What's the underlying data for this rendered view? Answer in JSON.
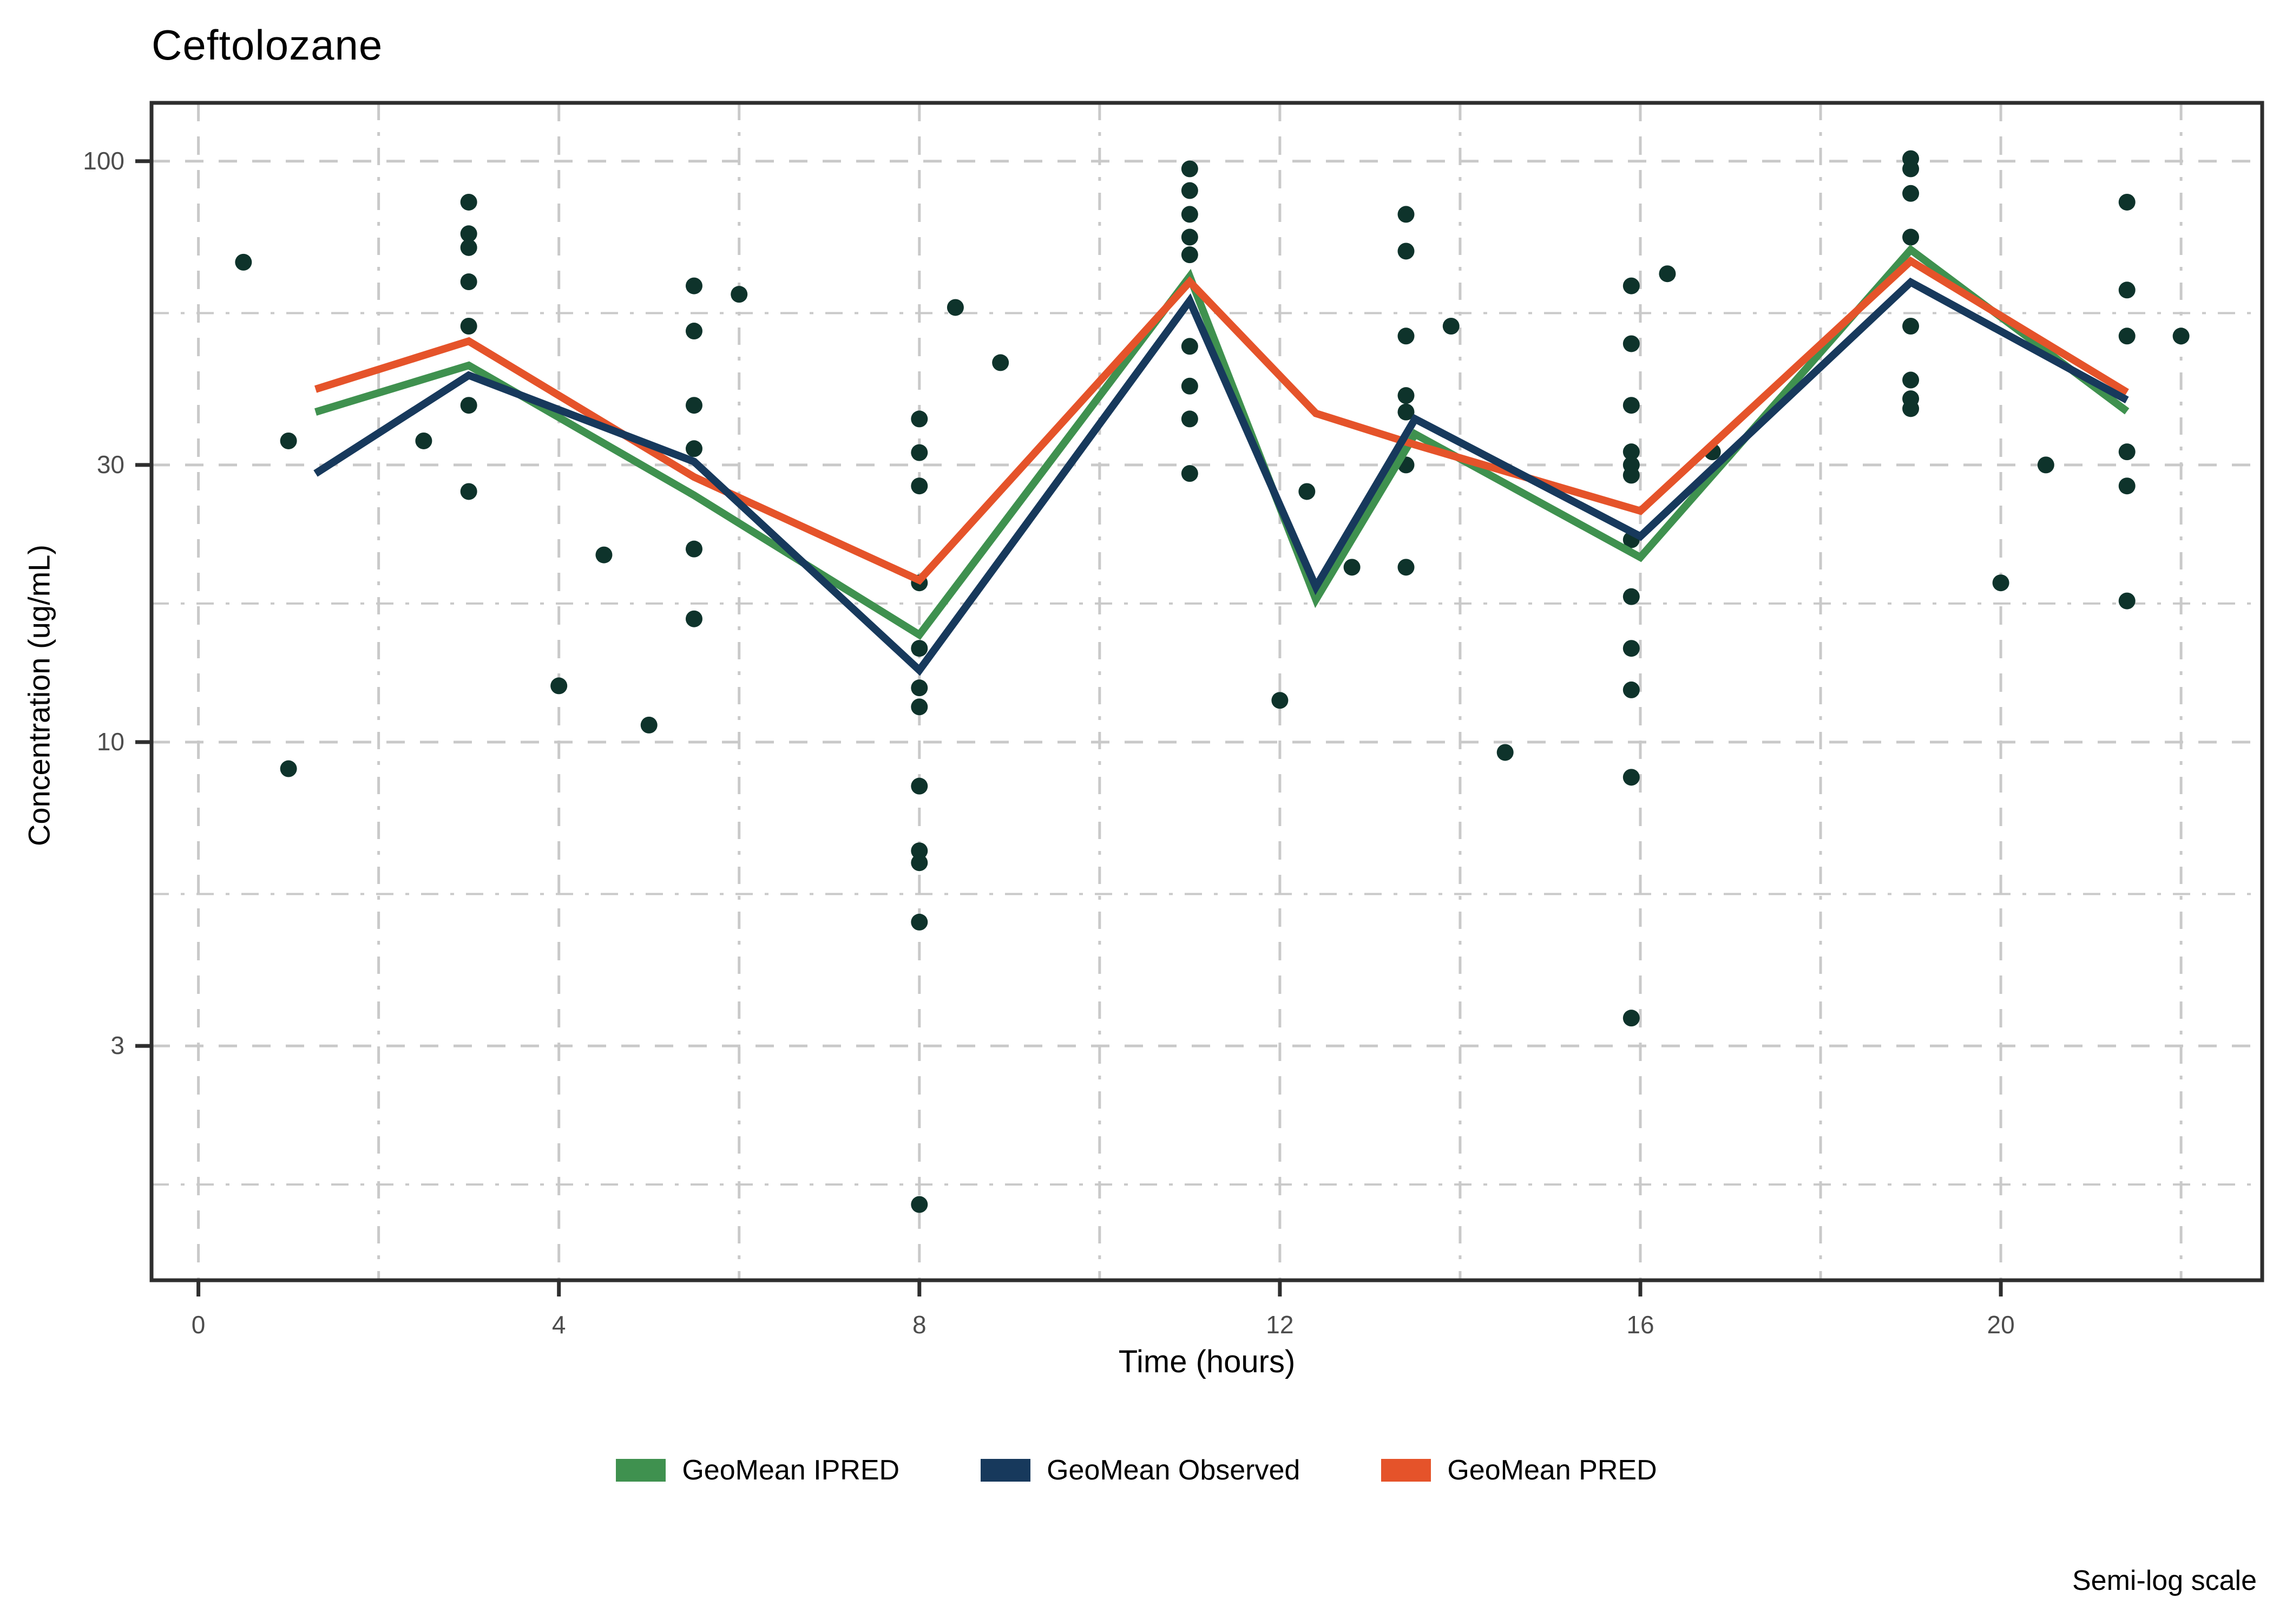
{
  "chart_data": {
    "type": "line+scatter",
    "title": "Ceftolozane",
    "xlabel": "Time (hours)",
    "ylabel": "Concentration (ug/mL)",
    "note": "Semi-log scale",
    "x_axis": {
      "ticks": [
        0,
        4,
        8,
        12,
        16,
        20
      ],
      "tick_labels": [
        "0",
        "4",
        "8",
        "12",
        "16",
        "20"
      ],
      "minor_gridlines": [
        2,
        6,
        10,
        14,
        18,
        22
      ],
      "lim": [
        -0.52,
        22.9
      ]
    },
    "y_axis": {
      "scale": "log10",
      "ticks": [
        100,
        30,
        10,
        3
      ],
      "tick_labels": [
        "100",
        "30",
        "10",
        "3"
      ],
      "minor_gridlines": [
        54.77,
        17.32,
        5.477,
        1.732
      ],
      "lim": [
        1.185,
        126
      ]
    },
    "colors": {
      "axis": "#2e2e2e",
      "grid": "#c9c9c9",
      "tick_text": "#4d4d4d",
      "scatter": "#0e332b",
      "ipred": "#3f914f",
      "observed": "#17395c",
      "pred": "#e5532a"
    },
    "legend_position": "bottom",
    "x_shared": [
      1.3,
      3,
      5.5,
      8,
      11,
      12.4,
      13.5,
      16,
      19,
      21.4
    ],
    "series": [
      {
        "name": "GeoMean IPRED",
        "color_key": "ipred",
        "values": [
          37,
          44.5,
          26.6,
          15.3,
          63.3,
          17.6,
          33.9,
          20.8,
          70.4,
          37.1
        ]
      },
      {
        "name": "GeoMean Observed",
        "color_key": "observed",
        "values": [
          29,
          42.8,
          30.4,
          13.3,
          57.5,
          18.5,
          36.0,
          22.6,
          61.9,
          38.8
        ]
      },
      {
        "name": "GeoMean PRED",
        "color_key": "pred",
        "values": [
          40.5,
          49,
          28.6,
          19.0,
          62,
          36.8,
          32.5,
          25.0,
          67.3,
          40.0
        ]
      }
    ],
    "draw_order": [
      0,
      2,
      1
    ],
    "scatter_points": [
      [
        0.5,
        67
      ],
      [
        1,
        33
      ],
      [
        1,
        9
      ],
      [
        2.5,
        33
      ],
      [
        3,
        85
      ],
      [
        3,
        75
      ],
      [
        3,
        71
      ],
      [
        3,
        62
      ],
      [
        3,
        52
      ],
      [
        3,
        38
      ],
      [
        3,
        27
      ],
      [
        4,
        12.5
      ],
      [
        4.5,
        21
      ],
      [
        5,
        10.7
      ],
      [
        5.5,
        61
      ],
      [
        5.5,
        51
      ],
      [
        5.5,
        38
      ],
      [
        5.5,
        32
      ],
      [
        5.5,
        21.5
      ],
      [
        5.5,
        16.3
      ],
      [
        6,
        59
      ],
      [
        8,
        36
      ],
      [
        8,
        31.5
      ],
      [
        8,
        27.6
      ],
      [
        8,
        18.8
      ],
      [
        8,
        14.5
      ],
      [
        8,
        12.4
      ],
      [
        8,
        11.5
      ],
      [
        8,
        8.4
      ],
      [
        8,
        6.5
      ],
      [
        8,
        6.2
      ],
      [
        8,
        4.9
      ],
      [
        8,
        1.6
      ],
      [
        8.4,
        56
      ],
      [
        8.9,
        45
      ],
      [
        11,
        97
      ],
      [
        11,
        89
      ],
      [
        11,
        81
      ],
      [
        11,
        74
      ],
      [
        11,
        69
      ],
      [
        11,
        48
      ],
      [
        11,
        41
      ],
      [
        11,
        36
      ],
      [
        11,
        29
      ],
      [
        12,
        11.8
      ],
      [
        12.3,
        27
      ],
      [
        12.8,
        20
      ],
      [
        13.4,
        81
      ],
      [
        13.4,
        70
      ],
      [
        13.4,
        50
      ],
      [
        13.4,
        39.5
      ],
      [
        13.4,
        37
      ],
      [
        13.4,
        30
      ],
      [
        13.4,
        20
      ],
      [
        13.9,
        52
      ],
      [
        14.5,
        9.6
      ],
      [
        15.9,
        61
      ],
      [
        15.9,
        48.5
      ],
      [
        15.9,
        38
      ],
      [
        15.9,
        31.6
      ],
      [
        15.9,
        30
      ],
      [
        15.9,
        28.8
      ],
      [
        15.9,
        22.3
      ],
      [
        15.9,
        17.8
      ],
      [
        15.9,
        14.5
      ],
      [
        15.9,
        12.3
      ],
      [
        15.9,
        8.7
      ],
      [
        15.9,
        3.35
      ],
      [
        16.3,
        64
      ],
      [
        16.8,
        31.6
      ],
      [
        19,
        101
      ],
      [
        19,
        97
      ],
      [
        19,
        88
      ],
      [
        19,
        74
      ],
      [
        19,
        52
      ],
      [
        19,
        42
      ],
      [
        19,
        39
      ],
      [
        19,
        37.5
      ],
      [
        20,
        18.8
      ],
      [
        20.5,
        30
      ],
      [
        21.4,
        85
      ],
      [
        21.4,
        60
      ],
      [
        21.4,
        50
      ],
      [
        21.4,
        31.6
      ],
      [
        21.4,
        27.6
      ],
      [
        21.4,
        17.5
      ],
      [
        22,
        50
      ]
    ]
  }
}
